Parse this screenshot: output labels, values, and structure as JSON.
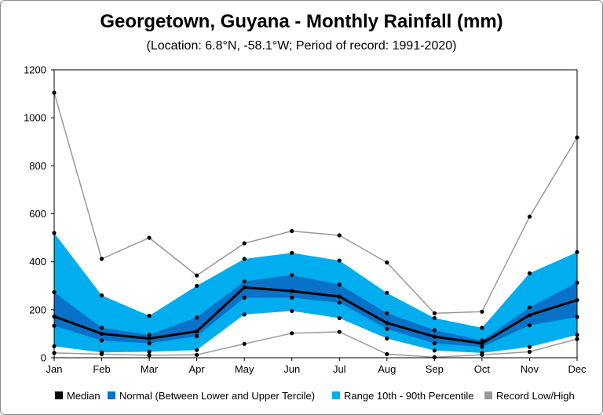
{
  "chart_data": {
    "type": "area",
    "title": "Georgetown, Guyana - Monthly Rainfall (mm)",
    "subtitle": "(Location: 6.8°N, -58.1°W; Period of record: 1991-2020)",
    "xlabel": "",
    "ylabel": "",
    "categories": [
      "Jan",
      "Feb",
      "Mar",
      "Apr",
      "May",
      "Jun",
      "Jul",
      "Aug",
      "Sep",
      "Oct",
      "Nov",
      "Dec"
    ],
    "ylim": [
      0,
      1200
    ],
    "yticks": [
      "0",
      "200",
      "400",
      "600",
      "800",
      "1000",
      "1200"
    ],
    "grid": false,
    "legend_position": "bottom",
    "series": [
      {
        "name": "Record Low",
        "values": [
          20,
          15,
          10,
          12,
          58,
          102,
          108,
          15,
          2,
          12,
          25,
          78
        ]
      },
      {
        "name": "10th Percentile",
        "values": [
          48,
          22,
          25,
          32,
          180,
          195,
          165,
          80,
          30,
          20,
          45,
          95
        ]
      },
      {
        "name": "Lower Tercile",
        "values": [
          133,
          72,
          60,
          90,
          250,
          250,
          230,
          120,
          60,
          45,
          135,
          170
        ]
      },
      {
        "name": "Median",
        "values": [
          172,
          100,
          80,
          110,
          293,
          278,
          255,
          145,
          88,
          60,
          178,
          240
        ]
      },
      {
        "name": "Upper Tercile",
        "values": [
          273,
          125,
          95,
          168,
          318,
          345,
          305,
          185,
          115,
          72,
          210,
          313
        ]
      },
      {
        "name": "90th Percentile",
        "values": [
          520,
          260,
          175,
          300,
          412,
          437,
          405,
          270,
          165,
          125,
          352,
          440
        ]
      },
      {
        "name": "Record High",
        "values": [
          1105,
          412,
          500,
          343,
          477,
          528,
          510,
          397,
          185,
          192,
          588,
          918
        ]
      }
    ],
    "colors": {
      "median": "#000000",
      "normal": "#0872c8",
      "range": "#00adef",
      "record": "#999999",
      "marker": "#000000"
    },
    "legend": [
      {
        "label": "Median",
        "color": "#000000"
      },
      {
        "label": "Normal (Between Lower and Upper Tercile)",
        "color": "#0872c8"
      },
      {
        "label": "Range 10th - 90th Percentile",
        "color": "#00adef"
      },
      {
        "label": "Record Low/High",
        "color": "#999999"
      }
    ]
  }
}
